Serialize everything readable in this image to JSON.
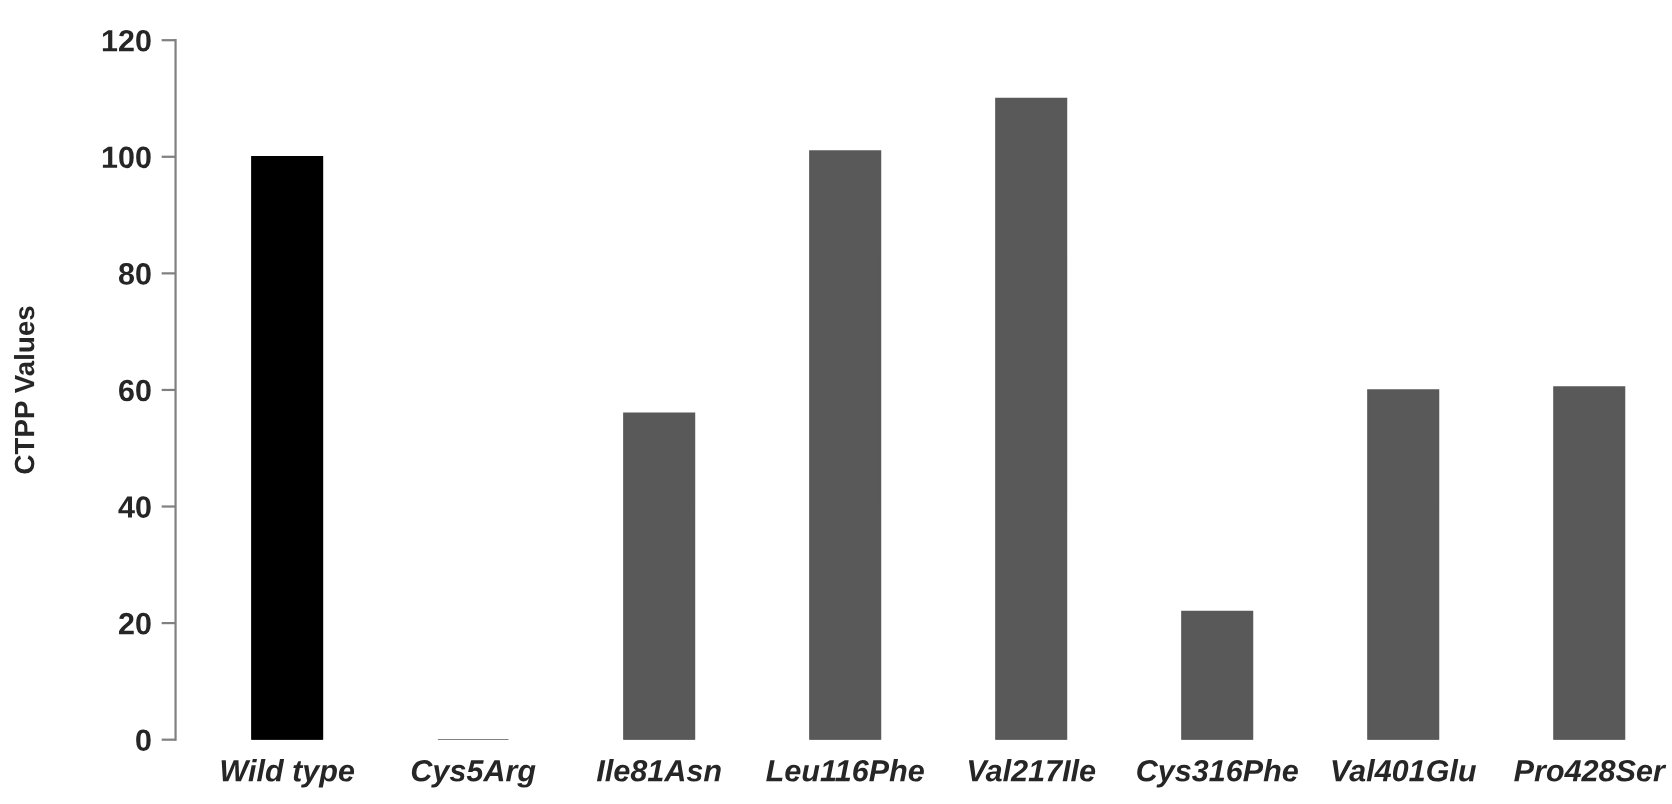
{
  "chart_data": {
    "type": "bar",
    "ylabel": "CTPP Values",
    "categories": [
      "Wild type",
      "Cys5Arg",
      "Ile81Asn",
      "Leu116Phe",
      "Val217Ile",
      "Cys316Phe",
      "Val401Glu",
      "Pro428Ser"
    ],
    "values": [
      100,
      0,
      56,
      101,
      110,
      22,
      60,
      60.5
    ],
    "colors": [
      "#000000",
      "#595959",
      "#595959",
      "#595959",
      "#595959",
      "#595959",
      "#595959",
      "#595959"
    ],
    "ylim": [
      0,
      120
    ],
    "yticks": [
      0,
      20,
      40,
      60,
      80,
      100,
      120
    ],
    "grid": false,
    "legend": false
  }
}
